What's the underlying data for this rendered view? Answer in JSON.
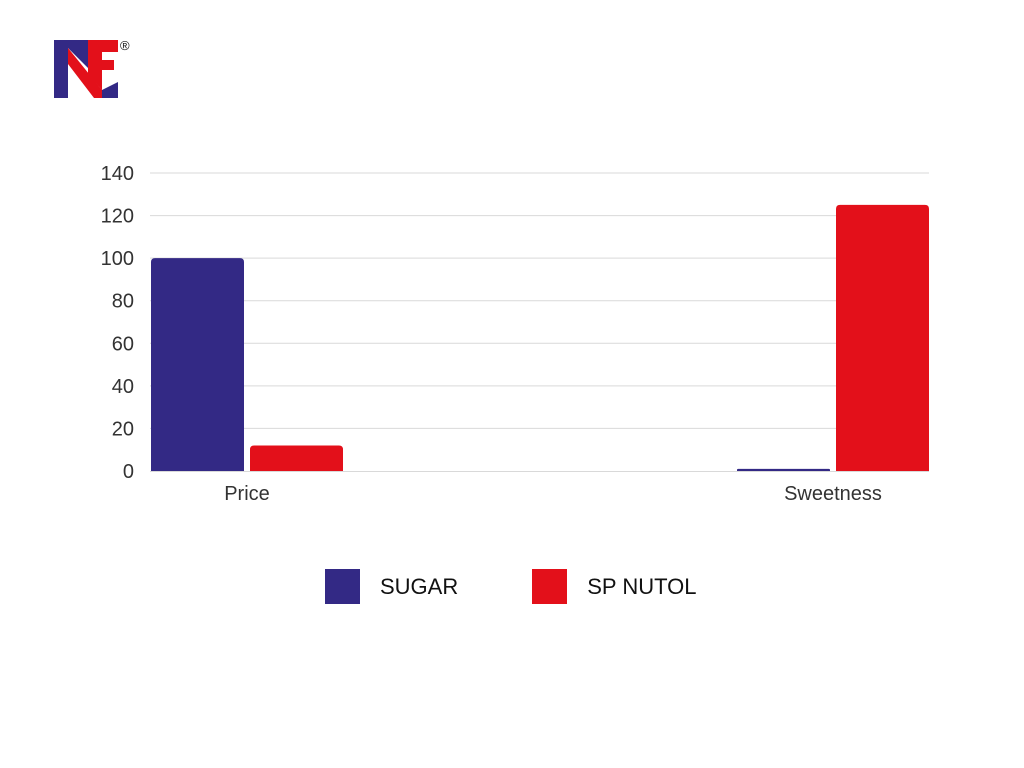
{
  "logo": {
    "icon": "nf-brand-logo-icon",
    "mark": "®",
    "colors": {
      "navy": "#332985",
      "red": "#e3101a"
    }
  },
  "chart_data": {
    "type": "bar",
    "categories": [
      "Price",
      "Sweetness"
    ],
    "series": [
      {
        "name": "SUGAR",
        "color": "#332985",
        "values": [
          100,
          1
        ]
      },
      {
        "name": "SP NUTOL",
        "color": "#e3101a",
        "values": [
          12,
          125
        ]
      }
    ],
    "ylim": [
      0,
      140
    ],
    "yticks": [
      "0",
      "20",
      "40",
      "60",
      "80",
      "100",
      "120",
      "140"
    ],
    "grid": true,
    "legend_position": "bottom"
  }
}
